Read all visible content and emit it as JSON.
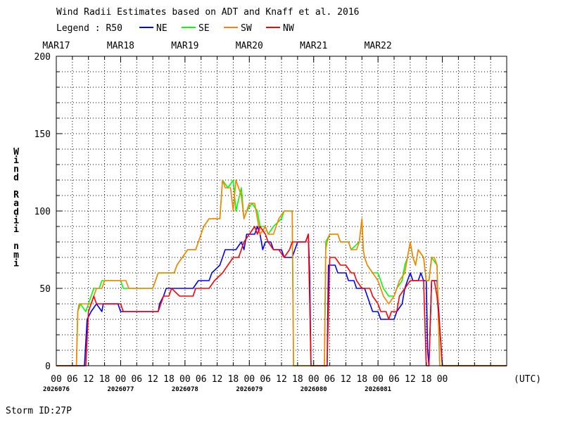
{
  "chart_data": {
    "type": "line",
    "title": "Wind Radii Estimates based on ADT and Knaff et al. 2016",
    "legend_label": "Legend : R50",
    "legend_placement": "top-left",
    "ylabel_chars": [
      "W",
      "i",
      "n",
      "d",
      "",
      "R",
      "a",
      "d",
      "i",
      "i",
      "",
      "n",
      "m",
      "i"
    ],
    "ylim": [
      0,
      200
    ],
    "y_ticks": [
      0,
      50,
      100,
      150,
      200
    ],
    "x_unit": "(UTC)",
    "x_tick_labels": [
      "00",
      "06",
      "12",
      "18",
      "00",
      "06",
      "12",
      "18",
      "00",
      "06",
      "12",
      "18",
      "00",
      "06",
      "12",
      "18",
      "00",
      "06",
      "12",
      "18",
      "00",
      "06",
      "12",
      "18",
      "00"
    ],
    "date_labels": [
      "MAR17",
      "MAR18",
      "MAR19",
      "MAR20",
      "MAR21",
      "MAR22"
    ],
    "julian_labels": [
      "2026076",
      "2026077",
      "2026078",
      "2026079",
      "2026080",
      "2026081"
    ],
    "grid": true,
    "x_note": "x values in hours since 00 UTC MAR17",
    "series": [
      {
        "name": "NE",
        "color": "#0000ff",
        "points": [
          [
            0,
            0
          ],
          [
            10.5,
            0
          ],
          [
            11.5,
            30
          ],
          [
            13,
            35
          ],
          [
            15,
            40
          ],
          [
            17,
            35
          ],
          [
            17.5,
            40
          ],
          [
            23,
            40
          ],
          [
            24,
            35
          ],
          [
            38,
            35
          ],
          [
            38.5,
            40
          ],
          [
            40,
            45
          ],
          [
            41,
            50
          ],
          [
            51,
            50
          ],
          [
            53,
            55
          ],
          [
            57,
            55
          ],
          [
            58,
            60
          ],
          [
            61,
            65
          ],
          [
            62,
            70
          ],
          [
            63,
            75
          ],
          [
            67,
            75
          ],
          [
            69,
            80
          ],
          [
            70,
            75
          ],
          [
            71,
            85
          ],
          [
            74,
            85
          ],
          [
            75,
            90
          ],
          [
            76,
            85
          ],
          [
            77,
            75
          ],
          [
            78,
            80
          ],
          [
            80,
            80
          ],
          [
            81,
            75
          ],
          [
            84,
            75
          ],
          [
            85,
            70
          ],
          [
            88,
            70
          ],
          [
            89,
            75
          ],
          [
            90,
            80
          ],
          [
            93,
            80
          ],
          [
            94,
            85
          ],
          [
            94.5,
            60
          ],
          [
            95,
            0
          ],
          [
            101,
            0
          ],
          [
            101.5,
            65
          ],
          [
            104,
            65
          ],
          [
            105,
            60
          ],
          [
            108,
            60
          ],
          [
            109,
            55
          ],
          [
            111,
            55
          ],
          [
            112,
            50
          ],
          [
            115,
            50
          ],
          [
            116,
            45
          ],
          [
            117,
            40
          ],
          [
            118,
            35
          ],
          [
            120,
            35
          ],
          [
            121,
            30
          ],
          [
            126,
            30
          ],
          [
            127,
            35
          ],
          [
            129,
            40
          ],
          [
            130,
            50
          ],
          [
            131,
            55
          ],
          [
            132,
            60
          ],
          [
            133,
            55
          ],
          [
            135,
            55
          ],
          [
            136,
            60
          ],
          [
            137,
            55
          ],
          [
            138,
            55
          ],
          [
            138.5,
            10
          ],
          [
            139,
            0
          ],
          [
            140,
            55
          ],
          [
            142,
            55
          ],
          [
            143,
            25
          ],
          [
            144,
            0
          ],
          [
            168,
            0
          ]
        ]
      },
      {
        "name": "SE",
        "color": "#00ff00",
        "points": [
          [
            0,
            0
          ],
          [
            7.5,
            0
          ],
          [
            8,
            35
          ],
          [
            9,
            40
          ],
          [
            11,
            35
          ],
          [
            13,
            45
          ],
          [
            14,
            50
          ],
          [
            16,
            50
          ],
          [
            17,
            55
          ],
          [
            24,
            55
          ],
          [
            25,
            50
          ],
          [
            36,
            50
          ],
          [
            37,
            55
          ],
          [
            38,
            60
          ],
          [
            44,
            60
          ],
          [
            45,
            65
          ],
          [
            47,
            70
          ],
          [
            49,
            75
          ],
          [
            52,
            75
          ],
          [
            53,
            80
          ],
          [
            55,
            90
          ],
          [
            57,
            95
          ],
          [
            61,
            95
          ],
          [
            62,
            120
          ],
          [
            64,
            115
          ],
          [
            66,
            120
          ],
          [
            67,
            100
          ],
          [
            69,
            115
          ],
          [
            70,
            95
          ],
          [
            71,
            100
          ],
          [
            73,
            105
          ],
          [
            75,
            100
          ],
          [
            76,
            90
          ],
          [
            78,
            90
          ],
          [
            79,
            85
          ],
          [
            81,
            90
          ],
          [
            84,
            95
          ],
          [
            85,
            100
          ],
          [
            88,
            100
          ],
          [
            88.5,
            0
          ],
          [
            100,
            0
          ],
          [
            100.5,
            80
          ],
          [
            102,
            85
          ],
          [
            105,
            85
          ],
          [
            106,
            80
          ],
          [
            109,
            80
          ],
          [
            110,
            75
          ],
          [
            113,
            80
          ],
          [
            114,
            95
          ],
          [
            114.5,
            75
          ],
          [
            115,
            70
          ],
          [
            116,
            65
          ],
          [
            118,
            60
          ],
          [
            120,
            60
          ],
          [
            121,
            55
          ],
          [
            122,
            50
          ],
          [
            124,
            45
          ],
          [
            126,
            45
          ],
          [
            127,
            50
          ],
          [
            129,
            55
          ],
          [
            130,
            65
          ],
          [
            131,
            70
          ],
          [
            132,
            80
          ],
          [
            133,
            70
          ],
          [
            134,
            65
          ],
          [
            135,
            75
          ],
          [
            137,
            70
          ],
          [
            138,
            55
          ],
          [
            139,
            55
          ],
          [
            140,
            70
          ],
          [
            142,
            65
          ],
          [
            143,
            0
          ],
          [
            168,
            0
          ]
        ]
      },
      {
        "name": "SW",
        "color": "#ff8000",
        "points": [
          [
            0,
            0
          ],
          [
            7.5,
            0
          ],
          [
            8,
            35
          ],
          [
            8.5,
            40
          ],
          [
            13,
            40
          ],
          [
            14,
            45
          ],
          [
            15,
            50
          ],
          [
            17,
            50
          ],
          [
            18,
            55
          ],
          [
            26,
            55
          ],
          [
            27,
            50
          ],
          [
            36,
            50
          ],
          [
            38,
            60
          ],
          [
            44,
            60
          ],
          [
            45,
            65
          ],
          [
            47,
            70
          ],
          [
            49,
            75
          ],
          [
            52,
            75
          ],
          [
            53,
            80
          ],
          [
            55,
            90
          ],
          [
            57,
            95
          ],
          [
            61,
            95
          ],
          [
            62,
            120
          ],
          [
            63,
            115
          ],
          [
            65,
            115
          ],
          [
            66,
            100
          ],
          [
            67,
            120
          ],
          [
            69,
            110
          ],
          [
            70,
            95
          ],
          [
            71,
            100
          ],
          [
            72,
            105
          ],
          [
            74,
            105
          ],
          [
            75,
            95
          ],
          [
            76,
            85
          ],
          [
            78,
            90
          ],
          [
            79,
            85
          ],
          [
            81,
            85
          ],
          [
            83,
            95
          ],
          [
            85,
            100
          ],
          [
            88,
            100
          ],
          [
            88.5,
            0
          ],
          [
            100,
            0
          ],
          [
            100.5,
            75
          ],
          [
            101,
            80
          ],
          [
            102,
            85
          ],
          [
            105,
            85
          ],
          [
            106,
            80
          ],
          [
            109,
            80
          ],
          [
            110,
            75
          ],
          [
            112,
            75
          ],
          [
            113,
            80
          ],
          [
            114,
            95
          ],
          [
            114.5,
            75
          ],
          [
            115,
            70
          ],
          [
            116,
            65
          ],
          [
            118,
            60
          ],
          [
            120,
            55
          ],
          [
            121,
            50
          ],
          [
            122,
            45
          ],
          [
            124,
            40
          ],
          [
            126,
            45
          ],
          [
            127,
            50
          ],
          [
            128,
            55
          ],
          [
            130,
            60
          ],
          [
            131,
            70
          ],
          [
            132,
            80
          ],
          [
            133,
            70
          ],
          [
            134,
            65
          ],
          [
            135,
            75
          ],
          [
            137,
            70
          ],
          [
            138,
            55
          ],
          [
            139,
            55
          ],
          [
            140,
            70
          ],
          [
            141,
            70
          ],
          [
            142,
            65
          ],
          [
            143,
            0
          ],
          [
            168,
            0
          ]
        ]
      },
      {
        "name": "NW",
        "color": "#ff0000",
        "points": [
          [
            0,
            0
          ],
          [
            11,
            0
          ],
          [
            12,
            35
          ],
          [
            14,
            45
          ],
          [
            15,
            40
          ],
          [
            24,
            40
          ],
          [
            25,
            35
          ],
          [
            38,
            35
          ],
          [
            39,
            40
          ],
          [
            40,
            45
          ],
          [
            42,
            45
          ],
          [
            43,
            50
          ],
          [
            46,
            45
          ],
          [
            51,
            45
          ],
          [
            52,
            50
          ],
          [
            57,
            50
          ],
          [
            59,
            55
          ],
          [
            62,
            60
          ],
          [
            64,
            65
          ],
          [
            66,
            70
          ],
          [
            68,
            70
          ],
          [
            69,
            75
          ],
          [
            70,
            80
          ],
          [
            72,
            85
          ],
          [
            74,
            90
          ],
          [
            75,
            85
          ],
          [
            76,
            90
          ],
          [
            78,
            85
          ],
          [
            79,
            80
          ],
          [
            81,
            75
          ],
          [
            83,
            75
          ],
          [
            85,
            70
          ],
          [
            87,
            75
          ],
          [
            88,
            80
          ],
          [
            93,
            80
          ],
          [
            94,
            85
          ],
          [
            95,
            0
          ],
          [
            101,
            0
          ],
          [
            102,
            70
          ],
          [
            104,
            70
          ],
          [
            106,
            65
          ],
          [
            108,
            65
          ],
          [
            110,
            60
          ],
          [
            111,
            60
          ],
          [
            112,
            55
          ],
          [
            114,
            50
          ],
          [
            117,
            50
          ],
          [
            118,
            45
          ],
          [
            120,
            40
          ],
          [
            121,
            35
          ],
          [
            123,
            35
          ],
          [
            124,
            30
          ],
          [
            125,
            35
          ],
          [
            127,
            35
          ],
          [
            128,
            45
          ],
          [
            130,
            50
          ],
          [
            132,
            55
          ],
          [
            137,
            55
          ],
          [
            138,
            0
          ],
          [
            139,
            0
          ],
          [
            140,
            55
          ],
          [
            141,
            55
          ],
          [
            142,
            45
          ],
          [
            143,
            25
          ],
          [
            144,
            0
          ],
          [
            168,
            0
          ]
        ]
      }
    ]
  },
  "footer": {
    "storm_id": "Storm ID:27P"
  }
}
